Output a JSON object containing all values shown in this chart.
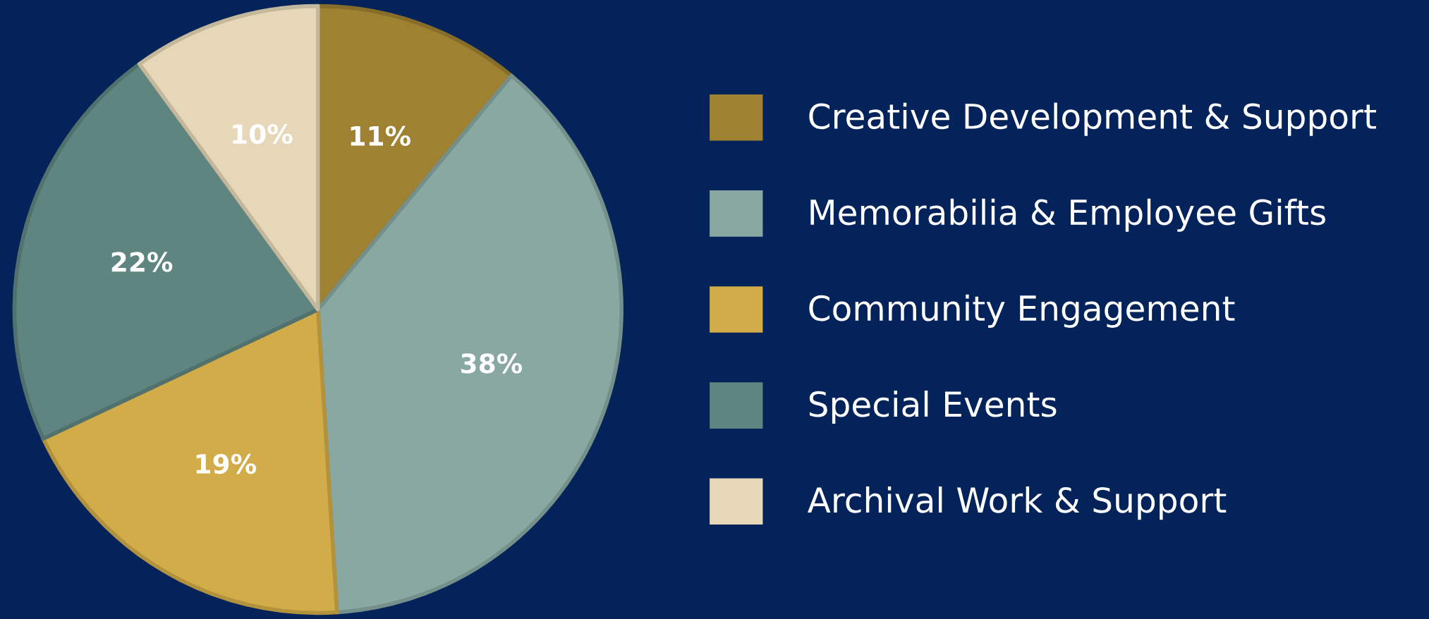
{
  "chart_data": {
    "type": "pie",
    "categories": [
      "Creative Development & Support",
      "Memorabilia & Employee Gifts",
      "Community Engagement",
      "Special Events",
      "Archival Work & Support"
    ],
    "values": [
      11,
      38,
      19,
      22,
      10
    ],
    "colors": [
      "#9e8232",
      "#8aa8a2",
      "#d2ac48",
      "#5f8580",
      "#e6d7b8"
    ],
    "value_labels": [
      "11%",
      "38%",
      "19%",
      "22%",
      "10%"
    ],
    "legend": "right"
  }
}
